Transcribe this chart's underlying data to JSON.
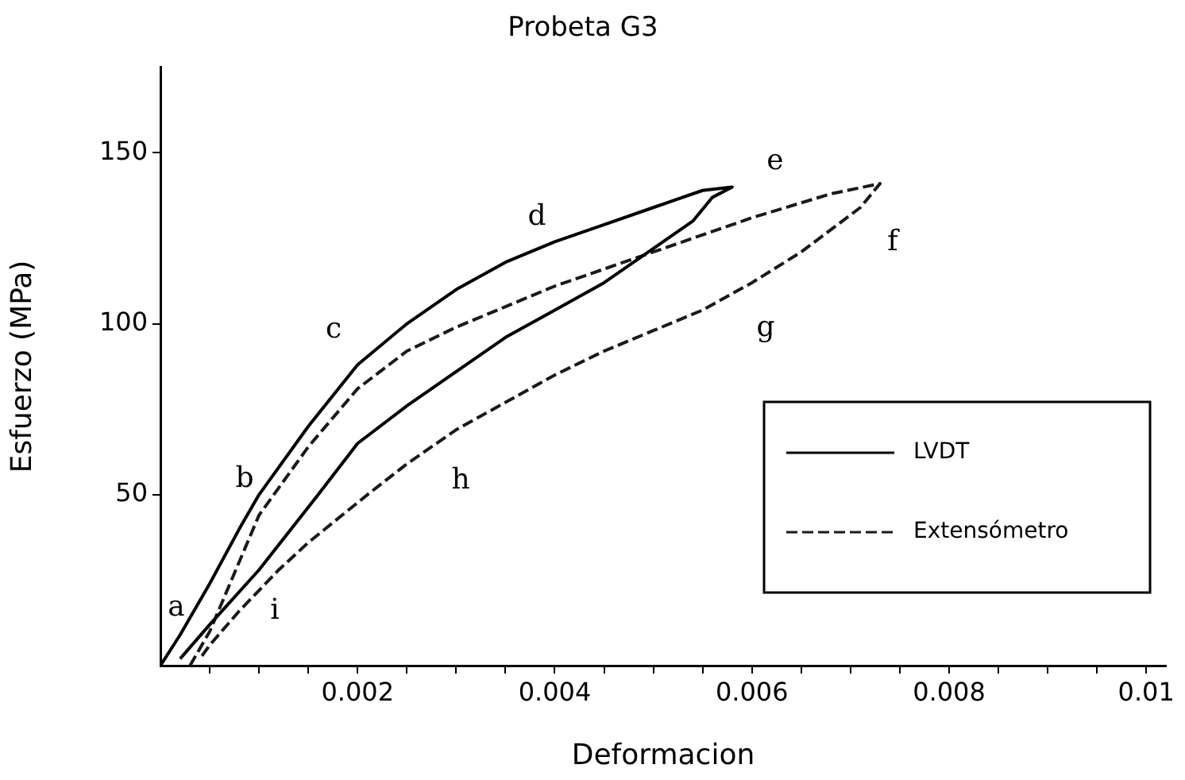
{
  "chart_data": {
    "type": "line",
    "title": "Probeta G3",
    "xlabel": "Deformacion",
    "ylabel": "Esfuerzo (MPa)",
    "xlim": [
      0,
      0.0102
    ],
    "ylim": [
      0,
      175
    ],
    "xticks": [
      {
        "value": 0.0005,
        "label": null
      },
      {
        "value": 0.001,
        "label": null
      },
      {
        "value": 0.0015,
        "label": null
      },
      0.002,
      {
        "value": 0.0025,
        "label": null
      },
      {
        "value": 0.003,
        "label": null
      },
      {
        "value": 0.0035,
        "label": null
      },
      0.004,
      {
        "value": 0.0045,
        "label": null
      },
      {
        "value": 0.005,
        "label": null
      },
      {
        "value": 0.0055,
        "label": null
      },
      0.006,
      {
        "value": 0.0065,
        "label": null
      },
      {
        "value": 0.007,
        "label": null
      },
      {
        "value": 0.0075,
        "label": null
      },
      0.008,
      {
        "value": 0.0085,
        "label": null
      },
      {
        "value": 0.009,
        "label": null
      },
      {
        "value": 0.0095,
        "label": null
      },
      0.01
    ],
    "yticks": [
      50,
      100,
      150
    ],
    "grid": false,
    "legend": "bottom right",
    "marker": "none",
    "series": [
      {
        "name": "LVDT",
        "color": "#000000",
        "line_style": "solid",
        "x": [
          0,
          0.0002,
          0.0005,
          0.0008,
          0.001,
          0.0015,
          0.002,
          0.0025,
          0.003,
          0.0035,
          0.004,
          0.0045,
          0.005,
          0.0055,
          0.0058,
          0.0056,
          0.0054,
          0.005,
          0.0045,
          0.004,
          0.0035,
          0.003,
          0.0025,
          0.002,
          0.0016,
          0.001,
          0.0005,
          0.0002
        ],
        "values": [
          0,
          9,
          24,
          40,
          50,
          70,
          88,
          100,
          110,
          118,
          124,
          129,
          134,
          139,
          140,
          137,
          130,
          122,
          112,
          104,
          96,
          86,
          76,
          65,
          50,
          28,
          12,
          2
        ]
      },
      {
        "name": "Extensómetro",
        "color": "#1a1a1a",
        "line_style": "dashed",
        "x": [
          0.0003,
          0.0005,
          0.001,
          0.0015,
          0.002,
          0.0025,
          0.003,
          0.0035,
          0.004,
          0.005,
          0.006,
          0.0068,
          0.0073,
          0.0071,
          0.0065,
          0.006,
          0.0055,
          0.005,
          0.0045,
          0.004,
          0.0035,
          0.003,
          0.0025,
          0.0021,
          0.0015,
          0.0012,
          0.0008,
          0.0005,
          0.0004
        ],
        "values": [
          0,
          10,
          44,
          64,
          81,
          92,
          99,
          105,
          111,
          121,
          131,
          138,
          141,
          134,
          121,
          112,
          104,
          98,
          92,
          85,
          77,
          69,
          59,
          50,
          36,
          28,
          16,
          6,
          2
        ]
      }
    ],
    "annotations": [
      "a",
      "b",
      "c",
      "d",
      "e",
      "f",
      "g",
      "h",
      "i"
    ]
  }
}
